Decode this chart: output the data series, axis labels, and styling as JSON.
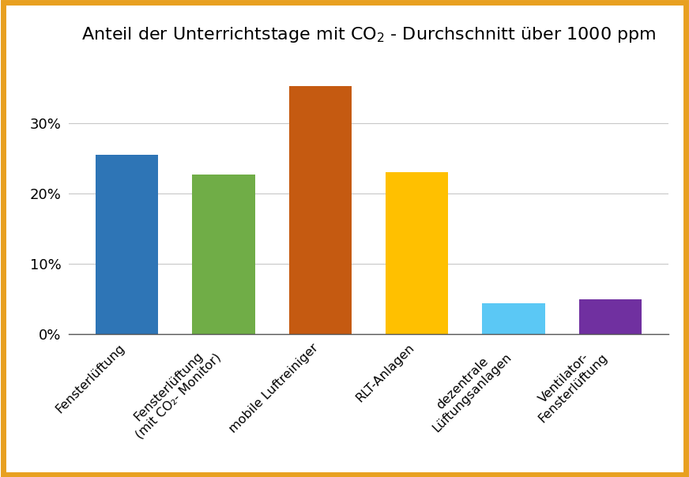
{
  "categories": [
    "Fensterlüftung",
    "Fensterlüftung\n(mit CO₂- Monitor)",
    "mobile Luftreiniger",
    "RLT-Anlagen",
    "dezentrale\nLüftungsanlagen",
    "Ventilator-\nFensterlüftung"
  ],
  "values": [
    25.5,
    22.7,
    35.2,
    23.0,
    4.3,
    4.9
  ],
  "bar_colors": [
    "#2E75B6",
    "#70AD47",
    "#C55A11",
    "#FFC000",
    "#5BC8F5",
    "#7030A0"
  ],
  "ylim": [
    0,
    40
  ],
  "yticks": [
    0,
    10,
    20,
    30
  ],
  "ytick_labels": [
    "0%",
    "10%",
    "20%",
    "30%"
  ],
  "background_color": "#FFFFFF",
  "border_color": "#E8A020",
  "grid_color": "#C8C8C8",
  "title_fontsize": 16,
  "tick_fontsize": 13,
  "xtick_fontsize": 11.5
}
